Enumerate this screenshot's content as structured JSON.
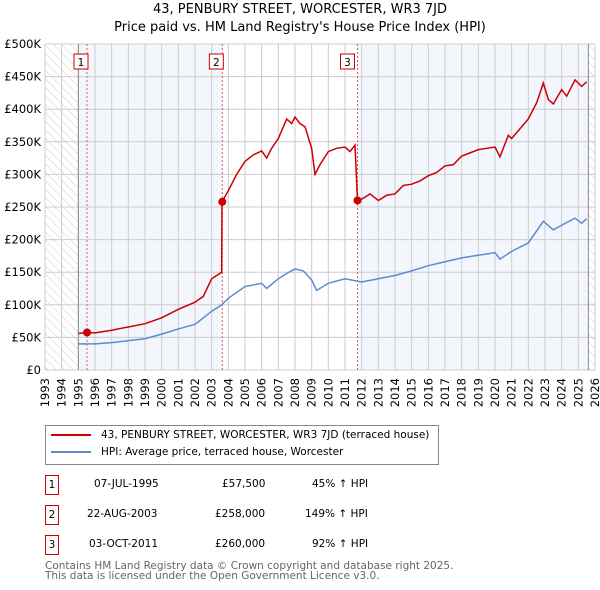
{
  "chart_data": {
    "type": "line",
    "title": "43, PENBURY STREET, WORCESTER, WR3 7JD",
    "subtitle": "Price paid vs. HM Land Registry's House Price Index (HPI)",
    "xlim": [
      1993,
      2026
    ],
    "ylim": [
      0,
      500000
    ],
    "x_ticks": [
      "1993",
      "1994",
      "1995",
      "1996",
      "1997",
      "1998",
      "1999",
      "2000",
      "2001",
      "2002",
      "2003",
      "2004",
      "2005",
      "2006",
      "2007",
      "2008",
      "2009",
      "2010",
      "2011",
      "2012",
      "2013",
      "2014",
      "2015",
      "2016",
      "2017",
      "2018",
      "2019",
      "2020",
      "2021",
      "2022",
      "2023",
      "2024",
      "2025",
      "2026"
    ],
    "y_ticks": [
      {
        "v": 0,
        "label": "£0"
      },
      {
        "v": 50000,
        "label": "£50K"
      },
      {
        "v": 100000,
        "label": "£100K"
      },
      {
        "v": 150000,
        "label": "£150K"
      },
      {
        "v": 200000,
        "label": "£200K"
      },
      {
        "v": 250000,
        "label": "£250K"
      },
      {
        "v": 300000,
        "label": "£300K"
      },
      {
        "v": 350000,
        "label": "£350K"
      },
      {
        "v": 400000,
        "label": "£400K"
      },
      {
        "v": 450000,
        "label": "£450K"
      },
      {
        "v": 500000,
        "label": "£500K"
      }
    ],
    "grid": true,
    "series": [
      {
        "name": "43, PENBURY STREET, WORCESTER, WR3 7JD (terraced house)",
        "color": "#cc0000",
        "x": [
          1995.0,
          1995.5,
          1996,
          1997,
          1998,
          1999,
          2000,
          2001,
          2002,
          2002.5,
          2003,
          2003.6,
          2003.62,
          2004,
          2004.5,
          2005,
          2005.5,
          2006,
          2006.3,
          2006.6,
          2007,
          2007.5,
          2007.8,
          2008,
          2008.3,
          2008.6,
          2009,
          2009.2,
          2009.5,
          2010,
          2010.5,
          2011,
          2011.3,
          2011.6,
          2011.75,
          2012,
          2012.5,
          2013,
          2013.5,
          2014,
          2014.5,
          2015,
          2015.5,
          2016,
          2016.5,
          2017,
          2017.5,
          2018,
          2018.5,
          2019,
          2019.5,
          2020,
          2020.3,
          2020.8,
          2021,
          2021.5,
          2022,
          2022.5,
          2022.9,
          2023.2,
          2023.5,
          2024,
          2024.3,
          2024.8,
          2025.2,
          2025.5
        ],
        "y": [
          56000,
          57500,
          57000,
          61000,
          66000,
          71000,
          80000,
          93000,
          104000,
          113000,
          140000,
          150000,
          258000,
          275000,
          300000,
          320000,
          330000,
          336000,
          325000,
          340000,
          355000,
          385000,
          378000,
          388000,
          378000,
          373000,
          340000,
          300000,
          315000,
          335000,
          340000,
          342000,
          335000,
          345000,
          260000,
          262000,
          270000,
          260000,
          268000,
          270000,
          283000,
          285000,
          290000,
          298000,
          303000,
          313000,
          315000,
          328000,
          333000,
          338000,
          340000,
          342000,
          327000,
          360000,
          355000,
          370000,
          385000,
          410000,
          440000,
          415000,
          408000,
          430000,
          420000,
          445000,
          435000,
          442000
        ]
      },
      {
        "name": "HPI: Average price, terraced house, Worcester",
        "color": "#5b8bd0",
        "x": [
          1995,
          1996,
          1997,
          1998,
          1999,
          2000,
          2001,
          2002,
          2003,
          2003.6,
          2004,
          2005,
          2006,
          2006.3,
          2007,
          2007.5,
          2008,
          2008.5,
          2009,
          2009.3,
          2010,
          2011,
          2012,
          2013,
          2014,
          2015,
          2016,
          2017,
          2018,
          2019,
          2020,
          2020.3,
          2021,
          2022,
          2022.9,
          2023.5,
          2024,
          2024.8,
          2025.2,
          2025.5
        ],
        "y": [
          40000,
          40000,
          42000,
          45000,
          48000,
          55000,
          63000,
          70000,
          90000,
          100000,
          110000,
          128000,
          133000,
          125000,
          140000,
          148000,
          155000,
          152000,
          138000,
          122000,
          133000,
          140000,
          135000,
          140000,
          145000,
          152000,
          160000,
          166000,
          172000,
          176000,
          180000,
          170000,
          182000,
          195000,
          228000,
          215000,
          222000,
          233000,
          225000,
          232000
        ]
      }
    ],
    "sales": [
      {
        "id": "1",
        "x": 1995.52,
        "y": 57500
      },
      {
        "id": "2",
        "x": 2003.64,
        "y": 258000
      },
      {
        "id": "3",
        "x": 2011.75,
        "y": 260000
      }
    ],
    "legend_position": "below"
  },
  "legend": {
    "property": "43, PENBURY STREET, WORCESTER, WR3 7JD (terraced house)",
    "hpi": "HPI: Average price, terraced house, Worcester"
  },
  "transactions": [
    {
      "id": "1",
      "date": "07-JUL-1995",
      "price": "£57,500",
      "hpi": "45% ↑ HPI"
    },
    {
      "id": "2",
      "date": "22-AUG-2003",
      "price": "£258,000",
      "hpi": "149% ↑ HPI"
    },
    {
      "id": "3",
      "date": "03-OCT-2011",
      "price": "£260,000",
      "hpi": "92% ↑ HPI"
    }
  ],
  "footer": {
    "line1": "Contains HM Land Registry data © Crown copyright and database right 2025.",
    "line2": "This data is licensed under the Open Government Licence v3.0."
  }
}
